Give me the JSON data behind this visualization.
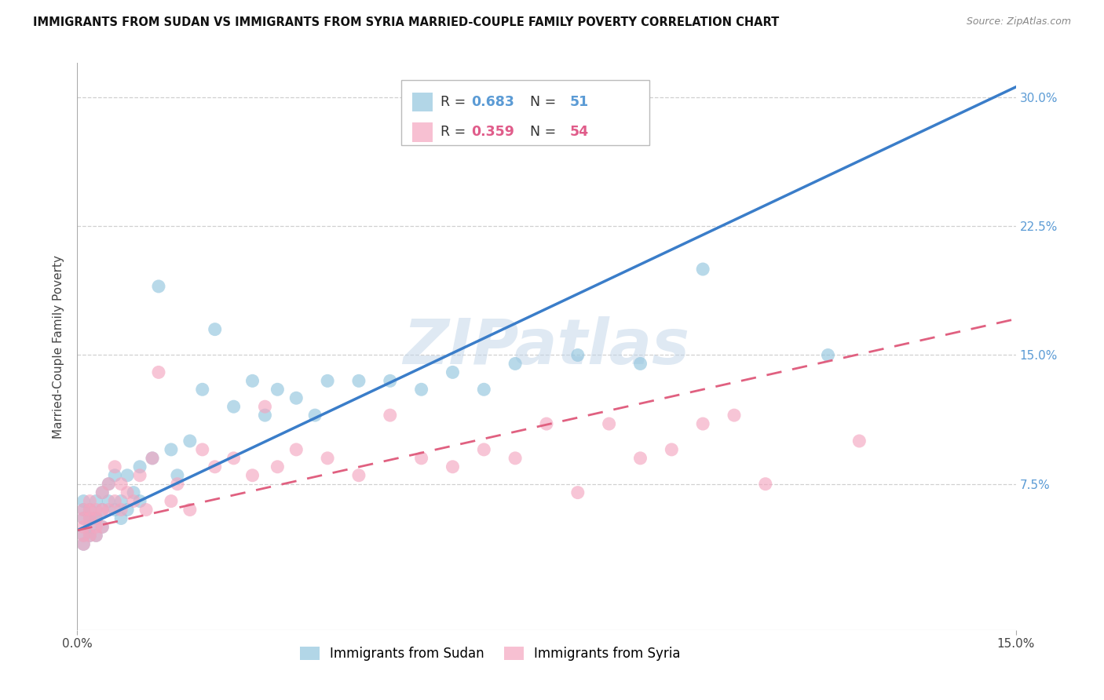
{
  "title": "IMMIGRANTS FROM SUDAN VS IMMIGRANTS FROM SYRIA MARRIED-COUPLE FAMILY POVERTY CORRELATION CHART",
  "source": "Source: ZipAtlas.com",
  "ylabel": "Married-Couple Family Poverty",
  "xlim": [
    0.0,
    0.15
  ],
  "ylim": [
    -0.01,
    0.32
  ],
  "xtick_positions": [
    0.0,
    0.15
  ],
  "xticklabels": [
    "0.0%",
    "15.0%"
  ],
  "ytick_positions": [
    0.075,
    0.15,
    0.225,
    0.3
  ],
  "yticklabels": [
    "7.5%",
    "15.0%",
    "22.5%",
    "30.0%"
  ],
  "grid_lines": [
    0.075,
    0.15,
    0.225,
    0.3
  ],
  "sudan_R": "0.683",
  "sudan_N": "51",
  "syria_R": "0.359",
  "syria_N": "54",
  "sudan_color": "#92c5de",
  "syria_color": "#f4a6c0",
  "sudan_line_color": "#3a7dc9",
  "syria_line_color": "#e06080",
  "sudan_line_intercept": 0.048,
  "sudan_line_slope": 1.72,
  "syria_line_intercept": 0.048,
  "syria_line_slope": 0.82,
  "legend_label_sudan": "Immigrants from Sudan",
  "legend_label_syria": "Immigrants from Syria",
  "watermark": "ZIPatlas",
  "sudan_x": [
    0.001,
    0.001,
    0.001,
    0.001,
    0.001,
    0.002,
    0.002,
    0.002,
    0.002,
    0.003,
    0.003,
    0.003,
    0.003,
    0.004,
    0.004,
    0.004,
    0.005,
    0.005,
    0.006,
    0.006,
    0.007,
    0.007,
    0.008,
    0.008,
    0.009,
    0.01,
    0.01,
    0.012,
    0.013,
    0.015,
    0.016,
    0.018,
    0.02,
    0.022,
    0.025,
    0.028,
    0.03,
    0.032,
    0.035,
    0.038,
    0.04,
    0.045,
    0.05,
    0.055,
    0.06,
    0.065,
    0.07,
    0.08,
    0.09,
    0.1,
    0.12
  ],
  "sudan_y": [
    0.045,
    0.055,
    0.06,
    0.065,
    0.04,
    0.05,
    0.06,
    0.045,
    0.055,
    0.065,
    0.055,
    0.045,
    0.055,
    0.07,
    0.06,
    0.05,
    0.075,
    0.065,
    0.08,
    0.06,
    0.065,
    0.055,
    0.08,
    0.06,
    0.07,
    0.085,
    0.065,
    0.09,
    0.19,
    0.095,
    0.08,
    0.1,
    0.13,
    0.165,
    0.12,
    0.135,
    0.115,
    0.13,
    0.125,
    0.115,
    0.135,
    0.135,
    0.135,
    0.13,
    0.14,
    0.13,
    0.145,
    0.15,
    0.145,
    0.2,
    0.15
  ],
  "syria_x": [
    0.001,
    0.001,
    0.001,
    0.001,
    0.001,
    0.002,
    0.002,
    0.002,
    0.002,
    0.003,
    0.003,
    0.003,
    0.003,
    0.004,
    0.004,
    0.004,
    0.005,
    0.005,
    0.006,
    0.006,
    0.007,
    0.007,
    0.008,
    0.009,
    0.01,
    0.011,
    0.012,
    0.013,
    0.015,
    0.016,
    0.018,
    0.02,
    0.022,
    0.025,
    0.028,
    0.03,
    0.032,
    0.035,
    0.04,
    0.045,
    0.05,
    0.055,
    0.06,
    0.065,
    0.07,
    0.075,
    0.08,
    0.085,
    0.09,
    0.095,
    0.1,
    0.105,
    0.11,
    0.125
  ],
  "syria_y": [
    0.05,
    0.06,
    0.045,
    0.055,
    0.04,
    0.055,
    0.065,
    0.045,
    0.06,
    0.06,
    0.055,
    0.05,
    0.045,
    0.07,
    0.06,
    0.05,
    0.075,
    0.06,
    0.085,
    0.065,
    0.06,
    0.075,
    0.07,
    0.065,
    0.08,
    0.06,
    0.09,
    0.14,
    0.065,
    0.075,
    0.06,
    0.095,
    0.085,
    0.09,
    0.08,
    0.12,
    0.085,
    0.095,
    0.09,
    0.08,
    0.115,
    0.09,
    0.085,
    0.095,
    0.09,
    0.11,
    0.07,
    0.11,
    0.09,
    0.095,
    0.11,
    0.115,
    0.075,
    0.1
  ]
}
